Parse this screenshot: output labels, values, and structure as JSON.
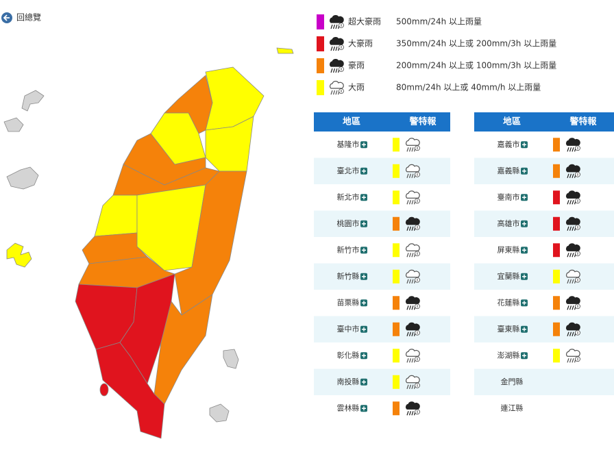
{
  "back": "回總覽",
  "legend": [
    {
      "color": "#c800c8",
      "icon": "heavy",
      "label": "超大豪雨",
      "desc": "500mm/24h 以上雨量"
    },
    {
      "color": "#e0141e",
      "icon": "heavy",
      "label": "大豪雨",
      "desc": "350mm/24h 以上或 200mm/3h 以上雨量"
    },
    {
      "color": "#f5820a",
      "icon": "heavy",
      "label": "豪雨",
      "desc": "200mm/24h 以上或 100mm/3h 以上雨量"
    },
    {
      "color": "#ffff00",
      "icon": "light",
      "label": "大雨",
      "desc": "80mm/24h 以上或 40mm/h 以上雨量"
    }
  ],
  "tables": [
    {
      "headers": [
        "地區",
        "警特報"
      ],
      "rows": [
        {
          "name": "基隆市",
          "color": "#ffff00"
        },
        {
          "name": "臺北市",
          "color": "#ffff00"
        },
        {
          "name": "新北市",
          "color": "#ffff00"
        },
        {
          "name": "桃園市",
          "color": "#f5820a"
        },
        {
          "name": "新竹市",
          "color": "#ffff00"
        },
        {
          "name": "新竹縣",
          "color": "#ffff00"
        },
        {
          "name": "苗栗縣",
          "color": "#f5820a"
        },
        {
          "name": "臺中市",
          "color": "#f5820a"
        },
        {
          "name": "彰化縣",
          "color": "#ffff00"
        },
        {
          "name": "南投縣",
          "color": "#ffff00"
        },
        {
          "name": "雲林縣",
          "color": "#f5820a"
        }
      ]
    },
    {
      "headers": [
        "地區",
        "警特報"
      ],
      "rows": [
        {
          "name": "嘉義市",
          "color": "#f5820a"
        },
        {
          "name": "嘉義縣",
          "color": "#f5820a"
        },
        {
          "name": "臺南市",
          "color": "#e0141e"
        },
        {
          "name": "高雄市",
          "color": "#e0141e"
        },
        {
          "name": "屏東縣",
          "color": "#e0141e"
        },
        {
          "name": "宜蘭縣",
          "color": "#ffff00"
        },
        {
          "name": "花蓮縣",
          "color": "#f5820a"
        },
        {
          "name": "臺東縣",
          "color": "#f5820a"
        },
        {
          "name": "澎湖縣",
          "color": "#ffff00"
        },
        {
          "name": "金門縣"
        },
        {
          "name": "連江縣"
        }
      ]
    }
  ]
}
